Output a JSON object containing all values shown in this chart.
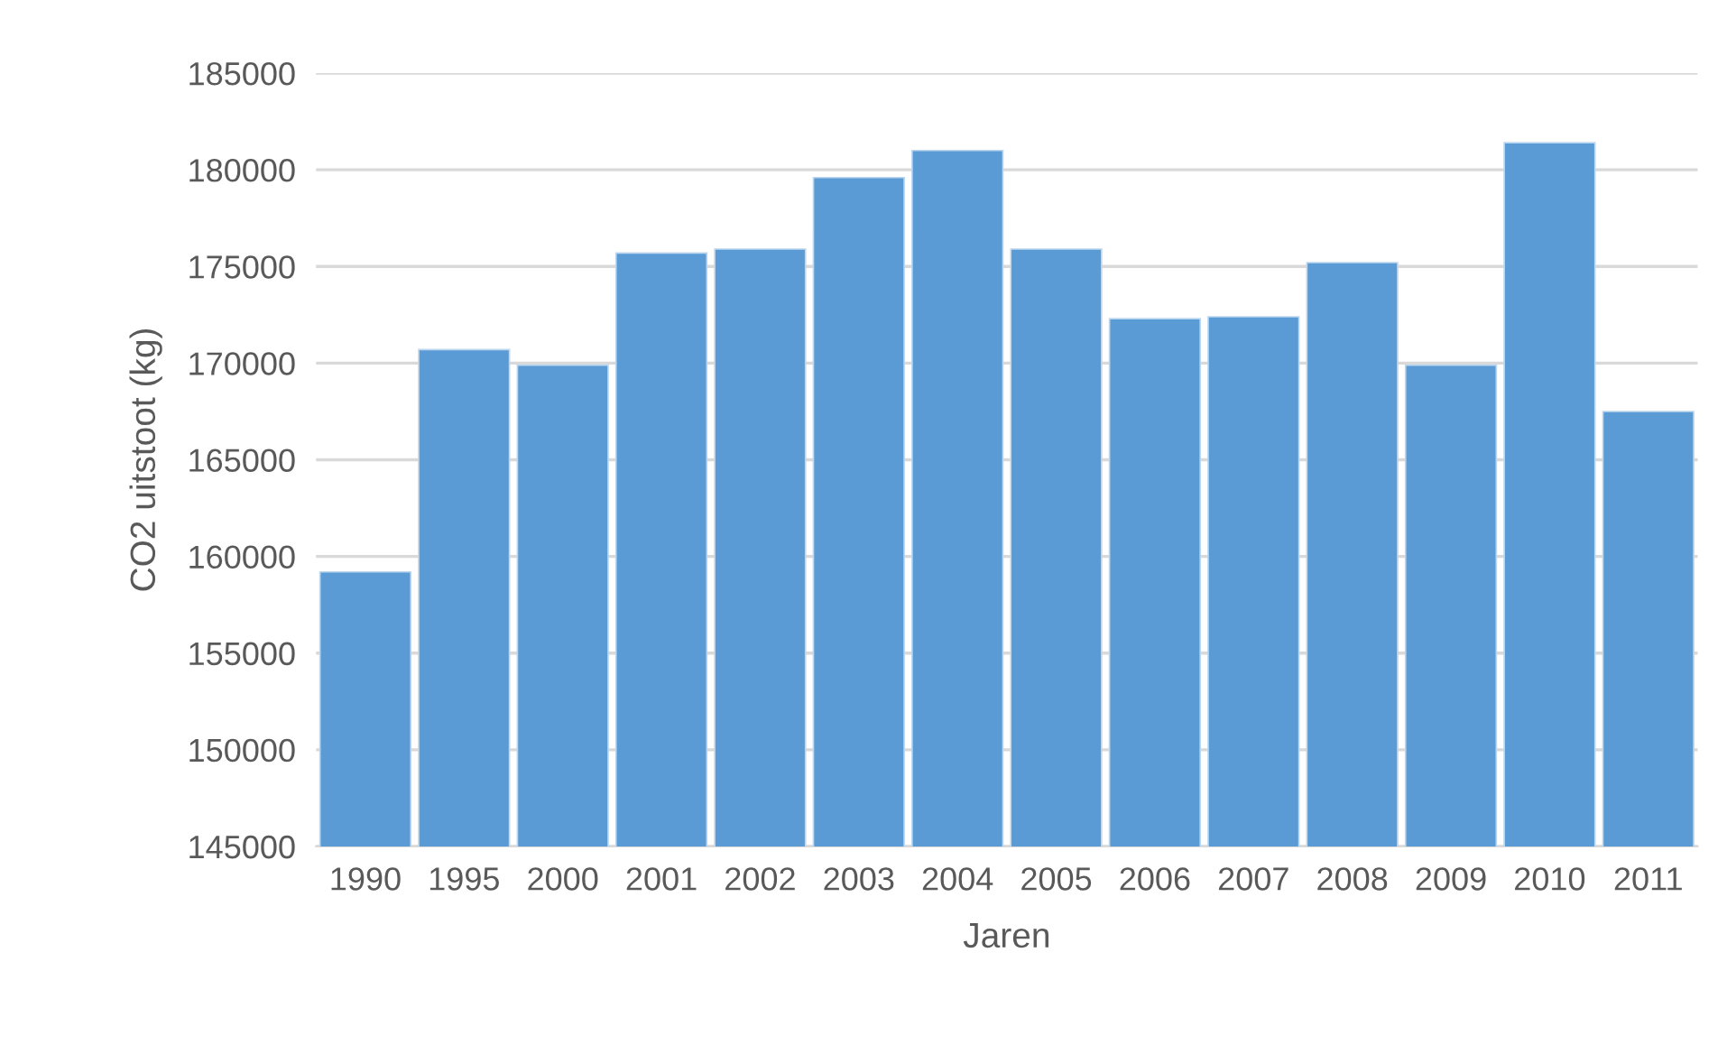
{
  "chart_data": {
    "type": "bar",
    "xlabel": "Jaren",
    "ylabel": "CO2 uitstoot (kg)",
    "categories": [
      "1990",
      "1995",
      "2000",
      "2001",
      "2002",
      "2003",
      "2004",
      "2005",
      "2006",
      "2007",
      "2008",
      "2009",
      "2010",
      "2011"
    ],
    "values": [
      159200,
      170700,
      169900,
      175700,
      175900,
      179600,
      181000,
      175900,
      172300,
      172400,
      175200,
      169900,
      181400,
      167500
    ],
    "color": "#5b9bd5",
    "ylim": [
      145000,
      185000
    ],
    "yticks": [
      145000,
      150000,
      155000,
      160000,
      165000,
      170000,
      175000,
      180000,
      185000
    ],
    "grid": "y"
  }
}
